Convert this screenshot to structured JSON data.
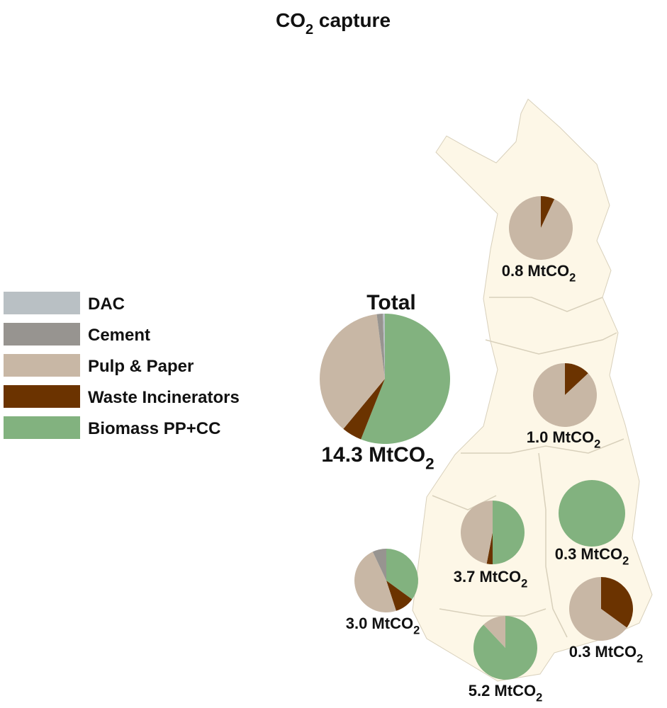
{
  "title": {
    "text": "CO",
    "sub": "2",
    "tail": " capture"
  },
  "legend": {
    "categories": [
      "DAC",
      "Cement",
      "Pulp & Paper",
      "Waste Incinerators",
      "Biomass PP+CC"
    ],
    "colors": [
      "#b9c0c4",
      "#979490",
      "#c8b7a5",
      "#6b3300",
      "#82b27f"
    ]
  },
  "pies": [
    {
      "title": "Total",
      "label": {
        "text": "14.3 MtCO",
        "sub": "2"
      },
      "values": [
        0.5,
        1.5,
        37,
        5,
        56
      ]
    },
    {
      "label": {
        "text": "0.8 MtCO",
        "sub": "2"
      },
      "values": [
        0,
        0,
        93,
        7,
        0
      ]
    },
    {
      "label": {
        "text": "1.0 MtCO",
        "sub": "2"
      },
      "values": [
        0,
        0,
        87,
        13,
        0
      ]
    },
    {
      "label": {
        "text": "0.3 MtCO",
        "sub": "2"
      },
      "values": [
        0,
        0,
        0,
        0,
        100
      ]
    },
    {
      "label": {
        "text": "3.7 MtCO",
        "sub": "2"
      },
      "values": [
        0,
        0,
        47,
        3,
        50
      ]
    },
    {
      "label": {
        "text": "3.0 MtCO",
        "sub": "2"
      },
      "values": [
        0,
        7,
        48,
        10,
        35
      ]
    },
    {
      "label": {
        "text": "0.3 MtCO",
        "sub": "2"
      },
      "values": [
        0,
        0,
        65,
        35,
        0
      ]
    },
    {
      "label": {
        "text": "5.2 MtCO",
        "sub": "2"
      },
      "values": [
        0,
        0,
        12,
        0,
        88
      ]
    }
  ]
}
